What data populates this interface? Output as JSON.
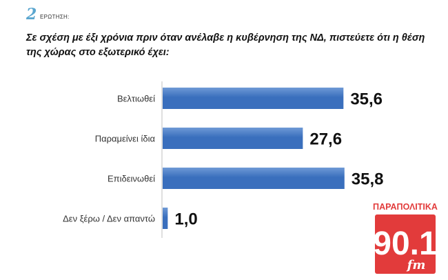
{
  "question": {
    "number": "2",
    "label": "ΕΡΩΤΗΣΗ:",
    "text": "Σε σχέση με έξι χρόνια πριν όταν ανέλαβε η κυβέρνηση της ΝΔ, πιστεύετε ότι η θέση της χώρας στο εξωτερικό έχει:"
  },
  "logo": {
    "top_text": "ΠΑΡΑΠΟΛΙΤΙΚΑ",
    "number": "90.1",
    "suffix": "fm",
    "color": "#e23b3b"
  },
  "colors": {
    "bar": "#3a6fbd",
    "bar_highlight": "#6f9ad6",
    "axis": "#bfbfbf"
  },
  "chart_data": {
    "type": "bar",
    "orientation": "horizontal",
    "categories": [
      "Βελτιωθεί",
      "Παραμείνει ίδια",
      "Επιδεινωθεί",
      "Δεν ξέρω / Δεν απαντώ"
    ],
    "values": [
      35.6,
      27.6,
      35.8,
      1.0
    ],
    "value_labels": [
      "35,6",
      "27,6",
      "35,8",
      "1,0"
    ],
    "xlim": [
      0,
      38
    ],
    "grid": false
  }
}
